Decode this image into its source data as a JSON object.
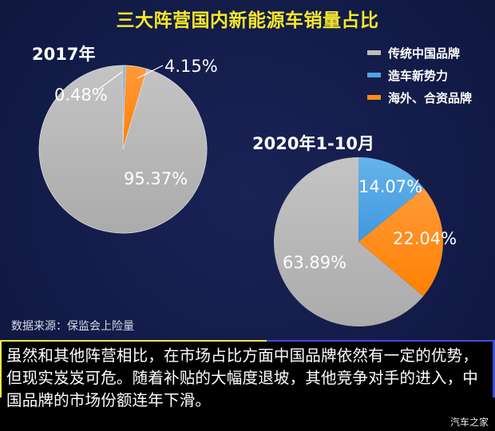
{
  "title": "三大阵营国内新能源车销量占比",
  "legend": [
    {
      "label": "传统中国品牌",
      "color": "#bdbdbd"
    },
    {
      "label": "造车新势力",
      "color": "#4fa3e3"
    },
    {
      "label": "海外、合资品牌",
      "color": "#ff8c1a"
    }
  ],
  "source": "数据来源：保监会上险量",
  "caption": "虽然和其他阵营相比，在市场占比方面中国品牌依然有一定的优势，但现实岌岌可危。随着补贴的大幅度退坡，其他竞争对手的进入，中国品牌的市场份额连年下滑。",
  "watermark": "汽车之家",
  "chart_data": [
    {
      "type": "pie",
      "title": "2017年",
      "categories": [
        "传统中国品牌",
        "造车新势力",
        "海外、合资品牌"
      ],
      "values": [
        95.37,
        0.48,
        4.15
      ],
      "labels": [
        "95.37%",
        "0.48%",
        "4.15%"
      ],
      "colors": [
        "#bdbdbd",
        "#4fa3e3",
        "#ff8c1a"
      ]
    },
    {
      "type": "pie",
      "title": "2020年1-10月",
      "categories": [
        "传统中国品牌",
        "造车新势力",
        "海外、合资品牌"
      ],
      "values": [
        63.89,
        14.07,
        22.04
      ],
      "labels": [
        "63.89%",
        "14.07%",
        "22.04%"
      ],
      "colors": [
        "#bdbdbd",
        "#4fa3e3",
        "#ff8c1a"
      ]
    }
  ]
}
